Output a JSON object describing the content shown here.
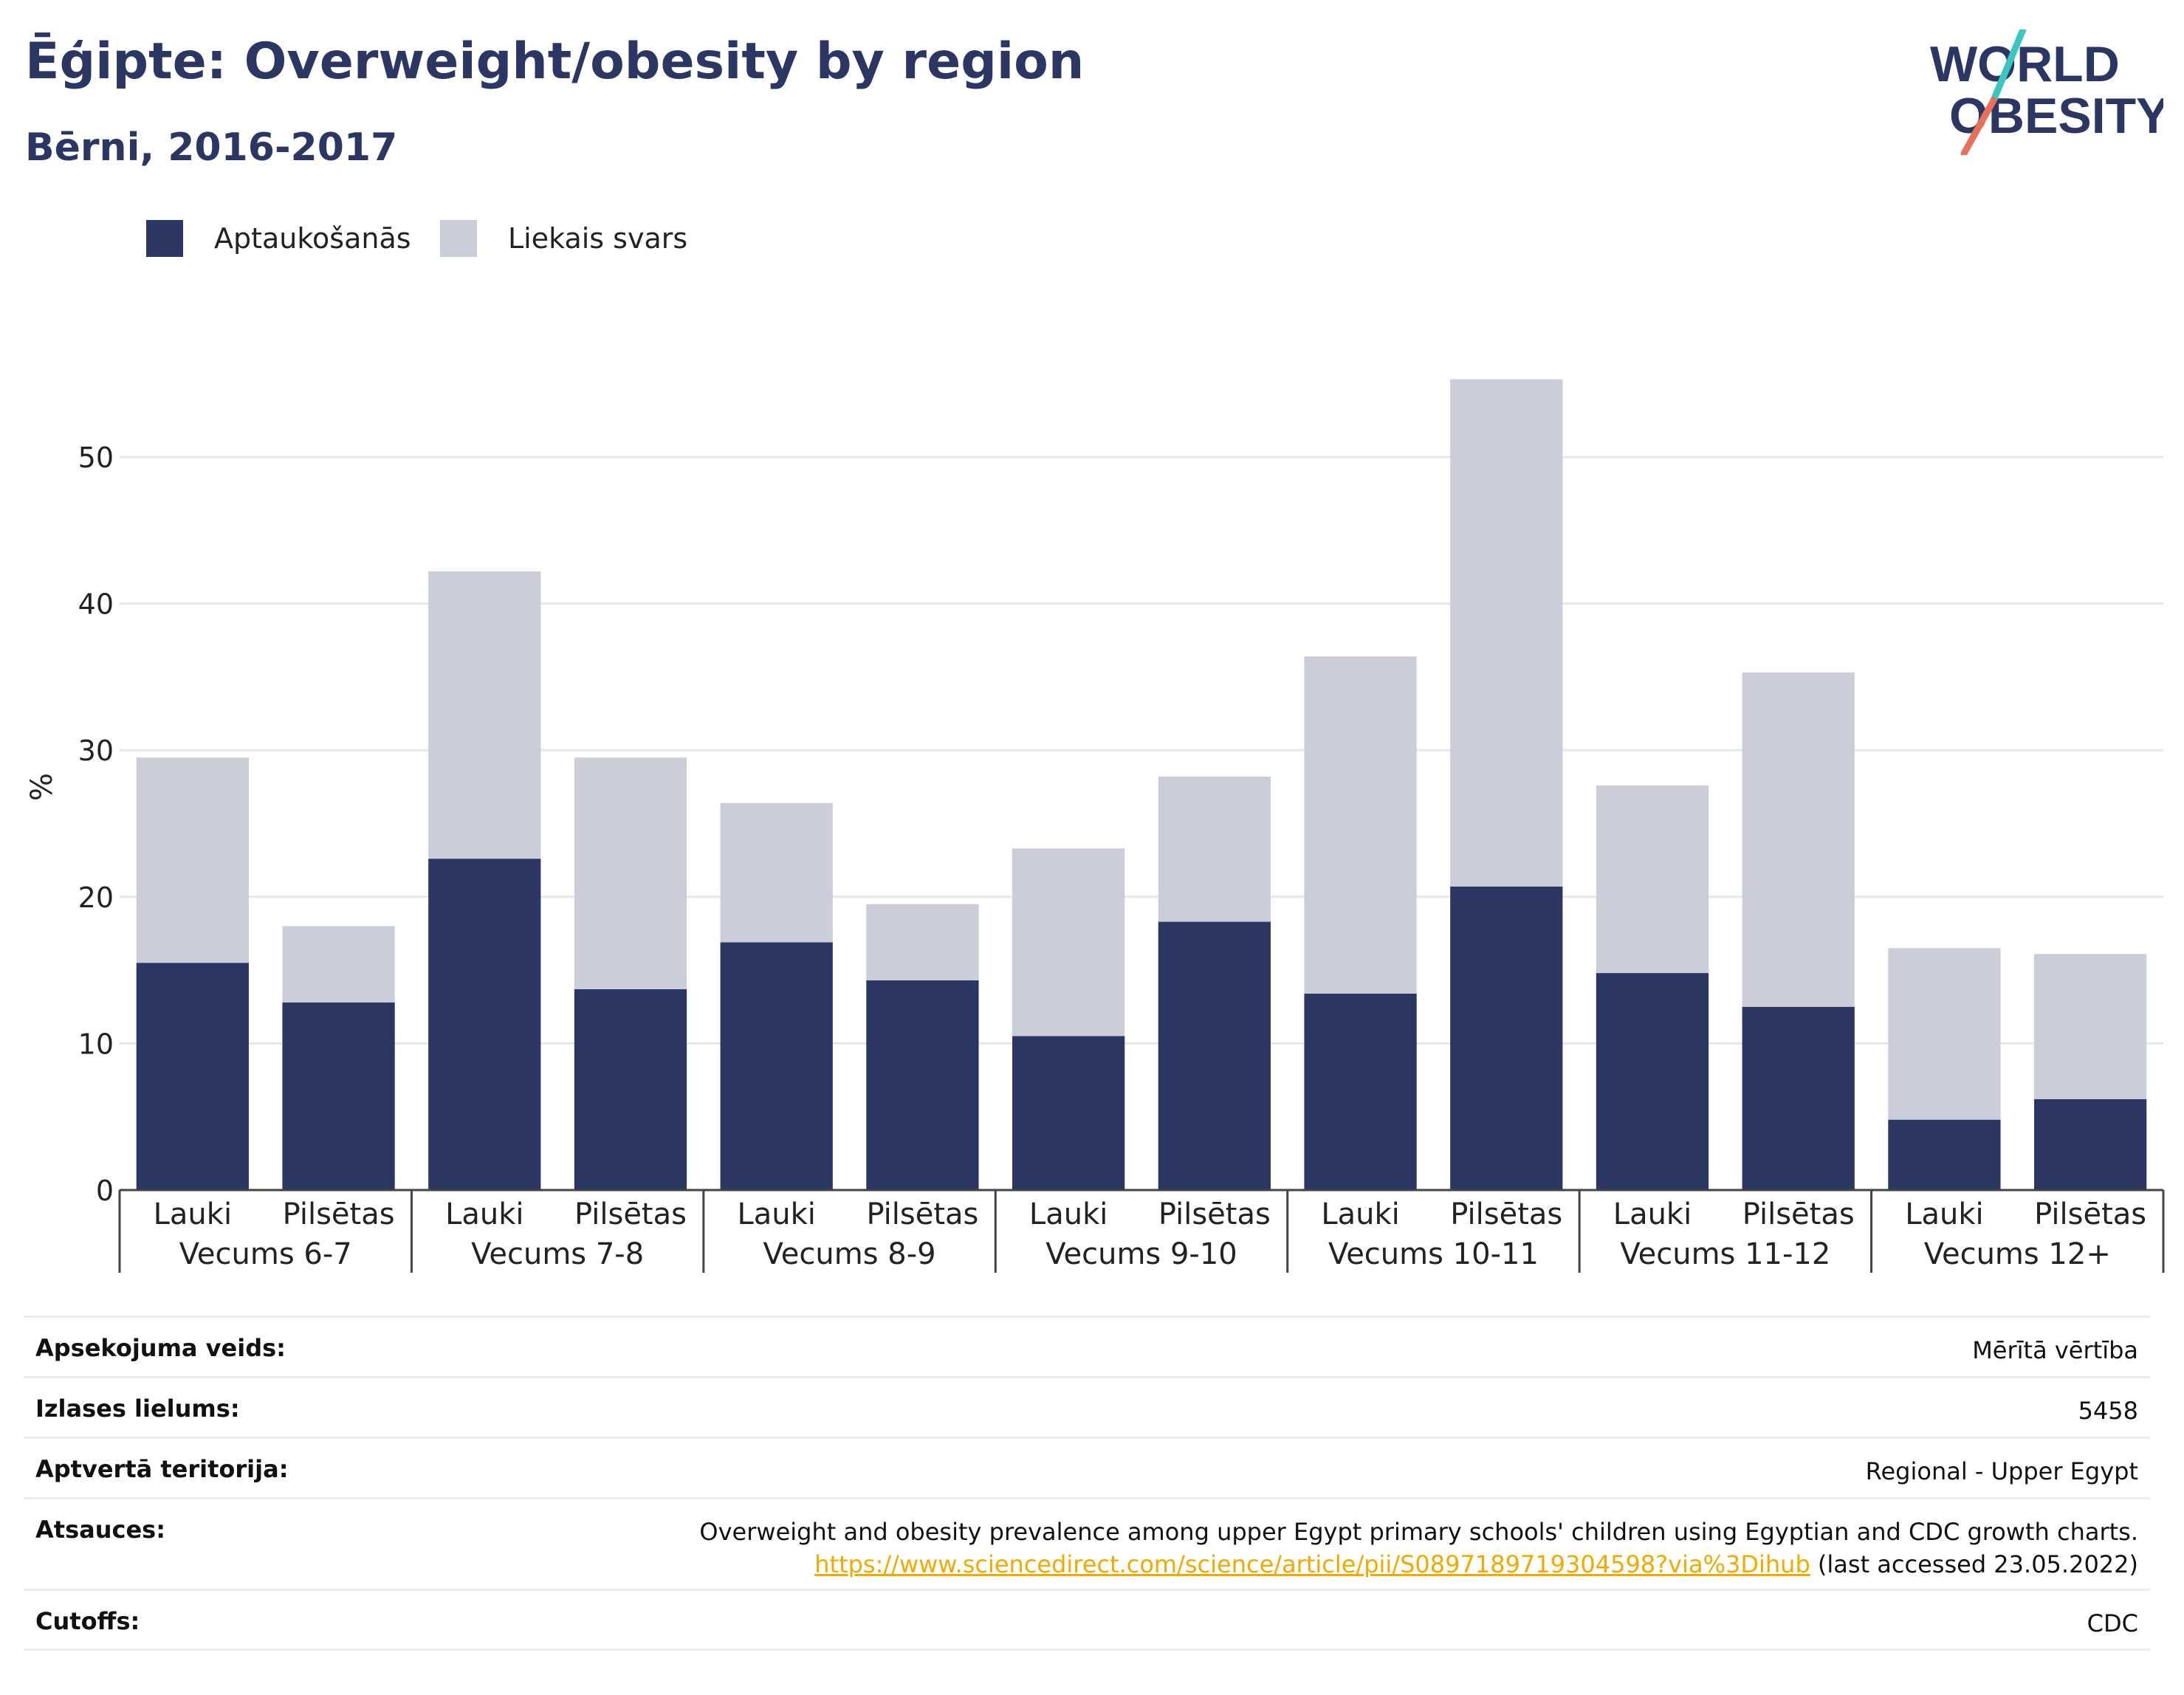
{
  "header": {
    "title": "Ēģipte: Overweight/obesity by region",
    "subtitle": "Bērni, 2016-2017"
  },
  "logo": {
    "line1": "WORLD",
    "line2": "OBESITY",
    "colors": {
      "text": "#2b3663",
      "slash_top": "#3cc6c0",
      "slash_bottom": "#e8705a"
    }
  },
  "legend": [
    {
      "label": "Aptaukošanās",
      "color": "#2b3663"
    },
    {
      "label": "Liekais svars",
      "color": "#cbcdd9"
    }
  ],
  "chart_data": {
    "type": "bar",
    "stacked": true,
    "ylabel": "%",
    "ylim": [
      0,
      57
    ],
    "yticks": [
      0,
      10,
      20,
      30,
      40,
      50
    ],
    "grid": true,
    "legend_position": "top-left",
    "groups": [
      "Vecums 6-7",
      "Vecums 7-8",
      "Vecums 8-9",
      "Vecums 9-10",
      "Vecums 10-11",
      "Vecums 11-12",
      "Vecums 12+"
    ],
    "subcategories": [
      "Lauki",
      "Pilsētas"
    ],
    "series": [
      {
        "name": "Aptaukošanās",
        "color": "#2b3663",
        "values": [
          15.5,
          12.8,
          22.6,
          13.7,
          16.9,
          14.3,
          10.5,
          18.3,
          13.4,
          20.7,
          14.8,
          12.5,
          4.8,
          6.2
        ]
      },
      {
        "name": "Liekais svars",
        "color": "#cbcdd9",
        "values": [
          14.0,
          5.2,
          19.6,
          15.8,
          9.5,
          5.2,
          12.8,
          9.9,
          23.0,
          34.6,
          12.8,
          22.8,
          11.7,
          9.9
        ]
      }
    ]
  },
  "details": [
    {
      "label": "Apsekojuma veids:",
      "value": "Mērītā vērtība"
    },
    {
      "label": "Izlases lielums:",
      "value": "5458"
    },
    {
      "label": "Aptvertā teritorija:",
      "value": "Regional - Upper Egypt"
    },
    {
      "label": "Atsauces:",
      "value": "Overweight and obesity prevalence among upper Egypt primary schools' children using Egyptian and CDC growth charts.",
      "link": "https://www.sciencedirect.com/science/article/pii/S0897189719304598?via%3Dihub",
      "note": " (last accessed 23.05.2022)"
    },
    {
      "label": "Cutoffs:",
      "value": "CDC"
    }
  ]
}
